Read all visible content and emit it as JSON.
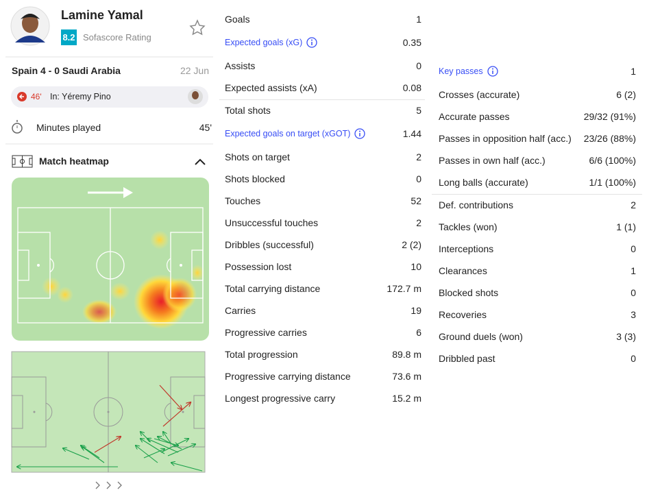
{
  "player": {
    "name": "Lamine Yamal",
    "rating": "8.2",
    "rating_label": "Sofascore Rating"
  },
  "match": {
    "score": "Spain 4 - 0 Saudi Arabia",
    "date": "22 Jun"
  },
  "substitution": {
    "minute": "46'",
    "text": "In: Yéremy Pino"
  },
  "minutes_played": {
    "label": "Minutes played",
    "value": "45'"
  },
  "heatmap": {
    "title": "Match heatmap"
  },
  "stats": {
    "columns": [
      {
        "groups": [
          {
            "rows": [
              {
                "label": "Goals",
                "value": "1"
              },
              {
                "label": "Expected goals (xG)",
                "value": "0.35",
                "highlight": true
              },
              {
                "label": "Assists",
                "value": "0"
              },
              {
                "label": "Expected assists (xA)",
                "value": "0.08"
              }
            ]
          },
          {
            "rows": [
              {
                "label": "Total shots",
                "value": "5"
              },
              {
                "label": "Expected goals on target (xGOT)",
                "value": "1.44",
                "highlight": true
              },
              {
                "label": "Shots on target",
                "value": "2"
              },
              {
                "label": "Shots blocked",
                "value": "0"
              },
              {
                "label": "Touches",
                "value": "52"
              },
              {
                "label": "Unsuccessful touches",
                "value": "2"
              },
              {
                "label": "Dribbles (successful)",
                "value": "2 (2)"
              },
              {
                "label": "Possession lost",
                "value": "10"
              },
              {
                "label": "Total carrying distance",
                "value": "172.7 m"
              },
              {
                "label": "Carries",
                "value": "19"
              },
              {
                "label": "Progressive carries",
                "value": "6"
              },
              {
                "label": "Total progression",
                "value": "89.8 m"
              },
              {
                "label": "Progressive carrying distance",
                "value": "73.6 m"
              },
              {
                "label": "Longest progressive carry",
                "value": "15.2 m"
              }
            ]
          }
        ]
      },
      {
        "groups": [
          {
            "rows": [
              {
                "label": "Key passes",
                "value": "1",
                "highlight": true
              },
              {
                "label": "Crosses (accurate)",
                "value": "6 (2)"
              },
              {
                "label": "Accurate passes",
                "value": "29/32 (91%)"
              },
              {
                "label": "Passes in opposition half (acc.)",
                "value": "23/26 (88%)"
              },
              {
                "label": "Passes in own half (acc.)",
                "value": "6/6 (100%)"
              },
              {
                "label": "Long balls (accurate)",
                "value": "1/1 (100%)"
              }
            ]
          },
          {
            "rows": [
              {
                "label": "Def. contributions",
                "value": "2"
              },
              {
                "label": "Tackles (won)",
                "value": "1 (1)"
              },
              {
                "label": "Interceptions",
                "value": "0"
              },
              {
                "label": "Clearances",
                "value": "1"
              },
              {
                "label": "Blocked shots",
                "value": "0"
              },
              {
                "label": "Recoveries",
                "value": "3"
              },
              {
                "label": "Ground duels (won)",
                "value": "3 (3)"
              },
              {
                "label": "Dribbled past",
                "value": "0"
              }
            ]
          }
        ]
      }
    ]
  }
}
